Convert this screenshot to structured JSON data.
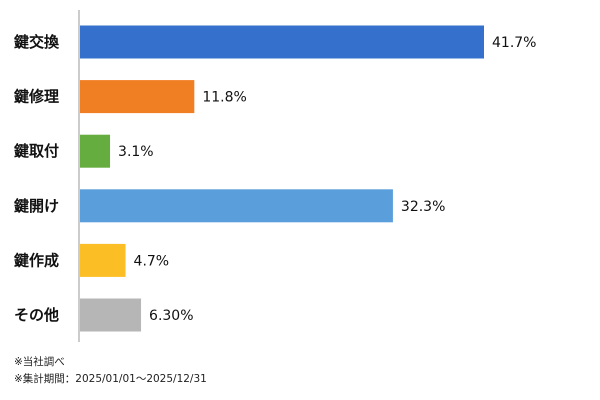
{
  "chart_data": {
    "type": "bar",
    "orientation": "horizontal",
    "categories": [
      "鍵交換",
      "鍵修理",
      "鍵取付",
      "鍵開け",
      "鍵作成",
      "その他"
    ],
    "values": [
      41.7,
      11.8,
      3.1,
      32.3,
      4.7,
      6.3
    ],
    "value_labels": [
      "41.7%",
      "11.8%",
      "3.1%",
      "32.3%",
      "4.7%",
      "6.30%"
    ],
    "colors": [
      "#3470cc",
      "#f07e23",
      "#65ad3f",
      "#5a9fdc",
      "#fbbe25",
      "#b6b6b6"
    ],
    "xlim": [
      0,
      50
    ],
    "grid": false
  },
  "notes": {
    "line1": "※当社調べ",
    "line2": "※集計期間：2025/01/01～2025/12/31"
  }
}
